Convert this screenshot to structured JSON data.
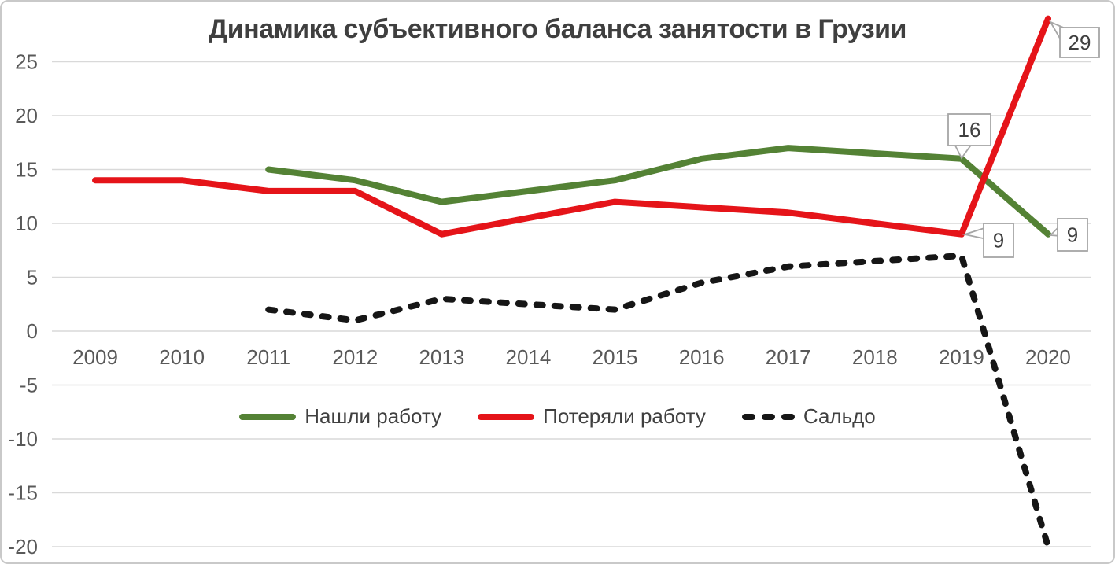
{
  "chart_data": {
    "type": "line",
    "title": "Динамика субъективного баланса занятости в Грузии",
    "categories": [
      "2009",
      "2010",
      "2011",
      "2012",
      "2013",
      "2014",
      "2015",
      "2016",
      "2017",
      "2018",
      "2019",
      "2020"
    ],
    "series": [
      {
        "name": "Нашли работу",
        "color": "#548235",
        "style": "solid",
        "values": [
          null,
          null,
          15,
          14,
          12,
          13,
          14,
          16,
          17,
          16.5,
          16,
          9
        ]
      },
      {
        "name": "Потеряли работу",
        "color": "#e51419",
        "style": "solid",
        "values": [
          14,
          14,
          13,
          13,
          9,
          10.5,
          12,
          11.5,
          11,
          10,
          9,
          29
        ]
      },
      {
        "name": "Сальдо",
        "color": "#161616",
        "style": "dashed",
        "values": [
          null,
          null,
          2,
          1,
          3,
          2.5,
          2,
          4.5,
          6,
          6.5,
          7,
          -20
        ]
      }
    ],
    "y_axis": {
      "min": -20,
      "max": 25,
      "step": 5,
      "tick_labels": [
        "25",
        "20",
        "15",
        "10",
        "5",
        "0",
        "-5",
        "-10",
        "-15",
        "-20"
      ]
    },
    "grid": {
      "horizontal": true,
      "vertical": false
    },
    "legend_position": "bottom-inside-center",
    "data_labels": [
      {
        "series": "Потеряли работу",
        "category": "2020",
        "value": "29"
      },
      {
        "series": "Нашли работу",
        "category": "2019",
        "value": "16"
      },
      {
        "series": "Потеряли работу",
        "category": "2019",
        "value": "9"
      },
      {
        "series": "Нашли работу",
        "category": "2020",
        "value": "9"
      }
    ]
  },
  "colors": {
    "background": "#ffffff",
    "border": "#c9c9c9",
    "gridline": "#d9d9d9",
    "tick_text": "#595959",
    "title_text": "#3f3f3f",
    "legend_text": "#404040",
    "callout_fill": "#ffffff",
    "callout_border": "#a6a6a6",
    "callout_text": "#404040"
  }
}
